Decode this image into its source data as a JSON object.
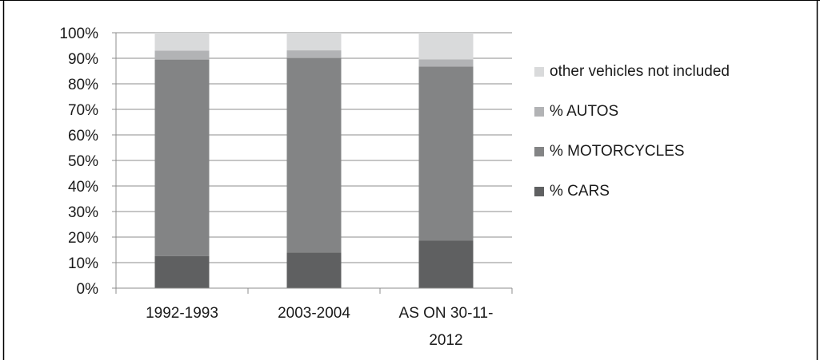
{
  "chart_data": {
    "type": "bar",
    "stacked": true,
    "percent_stacked": true,
    "categories": [
      "1992-1993",
      "2003-2004",
      "AS ON 30-11-\n2012"
    ],
    "series": [
      {
        "name": "% CARS",
        "values": [
          12.6,
          14.0,
          18.6
        ],
        "color": "#5f6061"
      },
      {
        "name": "% MOTORCYCLES",
        "values": [
          76.9,
          76.1,
          68.2
        ],
        "color": "#838485"
      },
      {
        "name": "% AUTOS",
        "values": [
          3.5,
          3.0,
          2.8
        ],
        "color": "#b2b3b5"
      },
      {
        "name": "other vehicles not included",
        "values": [
          7.0,
          6.9,
          10.4
        ],
        "color": "#d9dadb"
      }
    ],
    "y_ticks": [
      "0%",
      "10%",
      "20%",
      "30%",
      "40%",
      "50%",
      "60%",
      "70%",
      "80%",
      "90%",
      "100%"
    ],
    "ylim": [
      0,
      100
    ],
    "grid": true,
    "legend": "right"
  }
}
